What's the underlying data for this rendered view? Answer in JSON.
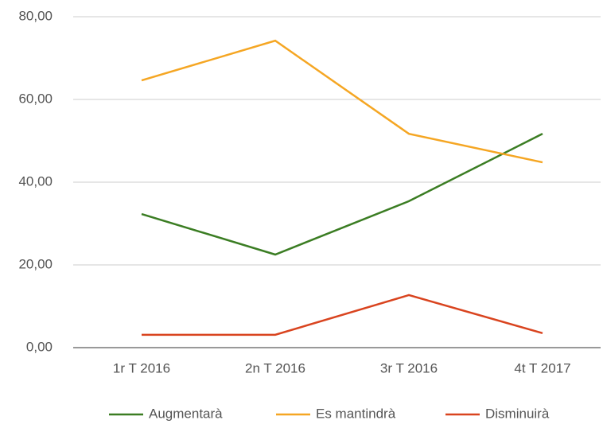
{
  "chart_data": {
    "type": "line",
    "categories": [
      "1r T 2016",
      "2n T 2016",
      "3r T 2016",
      "4t T 2017"
    ],
    "series": [
      {
        "name": "Augmentarà",
        "color": "#3b7d23",
        "values": [
          32.3,
          22.5,
          35.4,
          51.7
        ]
      },
      {
        "name": "Es mantindrà",
        "color": "#f5a623",
        "values": [
          64.6,
          74.2,
          51.7,
          44.8
        ]
      },
      {
        "name": "Disminuirà",
        "color": "#d9441f",
        "values": [
          3.1,
          3.1,
          12.7,
          3.5
        ]
      }
    ],
    "ylim": [
      0,
      80
    ],
    "yticks": [
      {
        "value": 0,
        "label": "0,00"
      },
      {
        "value": 20,
        "label": "20,00"
      },
      {
        "value": 40,
        "label": "40,00"
      },
      {
        "value": 60,
        "label": "60,00"
      },
      {
        "value": 80,
        "label": "80,00"
      }
    ],
    "grid": true,
    "legend": "bottom"
  }
}
